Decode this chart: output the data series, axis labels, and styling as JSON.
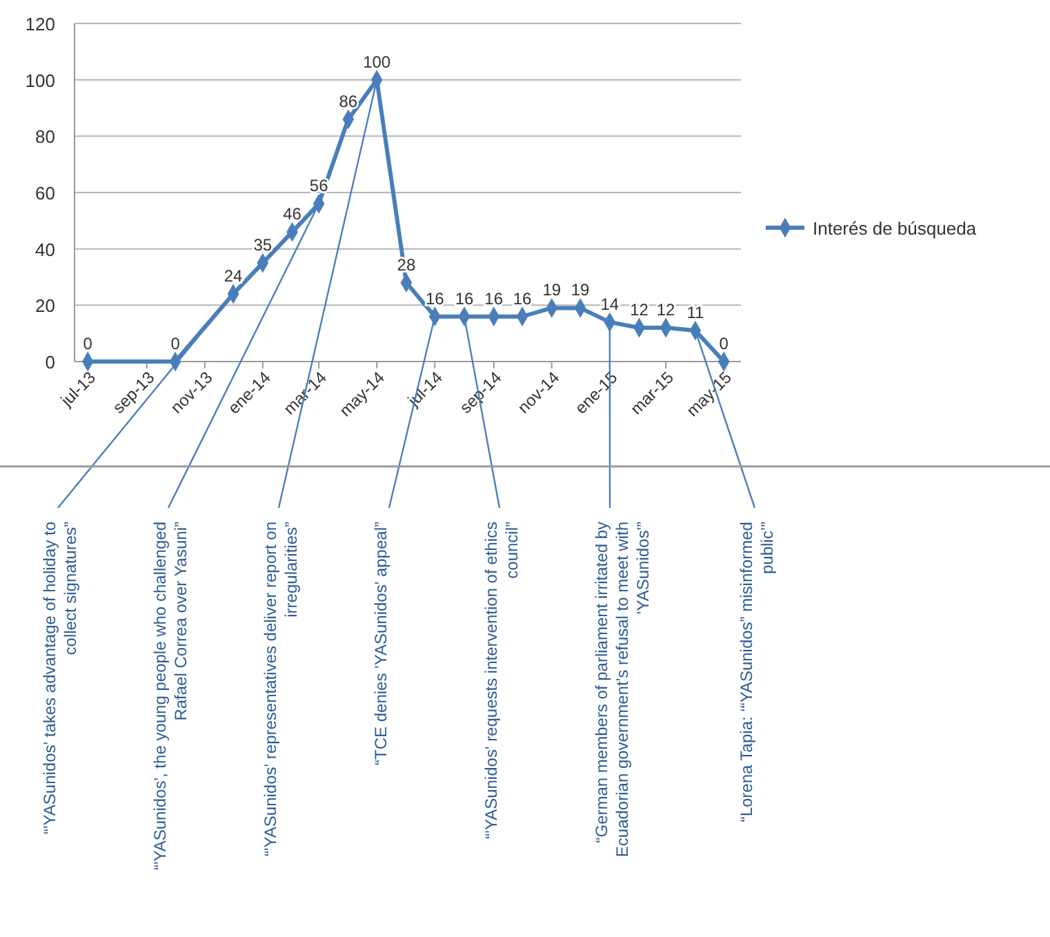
{
  "chart_data": {
    "type": "line",
    "x": [
      "2013-07",
      "2013-10",
      "2013-12",
      "2014-01",
      "2014-02",
      "2014-03",
      "2014-04",
      "2014-05",
      "2014-06",
      "2014-07",
      "2014-08",
      "2014-09",
      "2014-10",
      "2014-11",
      "2014-12",
      "2015-01",
      "2015-02",
      "2015-03",
      "2015-04",
      "2015-05"
    ],
    "series": [
      {
        "name": "Interés de búsqueda",
        "color": "#4a7ebb",
        "values": [
          0,
          0,
          24,
          35,
          46,
          56,
          86,
          100,
          28,
          16,
          16,
          16,
          16,
          19,
          19,
          14,
          12,
          12,
          11,
          0
        ]
      }
    ],
    "xlim": [
      "2013-06-17",
      "2015-05-19"
    ],
    "xticks": [
      {
        "value": "2013-07",
        "label": "jul-13"
      },
      {
        "value": "2013-09",
        "label": "sep-13"
      },
      {
        "value": "2013-11",
        "label": "nov-13"
      },
      {
        "value": "2014-01",
        "label": "ene-14"
      },
      {
        "value": "2014-03",
        "label": "mar-14"
      },
      {
        "value": "2014-05",
        "label": "may-14"
      },
      {
        "value": "2014-07",
        "label": "jul-14"
      },
      {
        "value": "2014-09",
        "label": "sep-14"
      },
      {
        "value": "2014-11",
        "label": "nov-14"
      },
      {
        "value": "2015-01",
        "label": "ene-15"
      },
      {
        "value": "2015-03",
        "label": "mar-15"
      },
      {
        "value": "2015-05",
        "label": "may-15"
      }
    ],
    "ylim": [
      0,
      120
    ],
    "yticks": [
      0,
      20,
      40,
      60,
      80,
      100,
      120
    ],
    "grid": "y",
    "legend": "right",
    "marker": "diamond",
    "line_style": "solid",
    "data_labels": true,
    "annotations": [
      {
        "text": "“'YASunidos' takes advantage of holiday to collect signatures”",
        "x": "2013-12",
        "y": 24
      },
      {
        "text": "“'YASunidos', the young people who challenged Rafael Correa over Yasuni”",
        "x": "2014-03",
        "y": 56
      },
      {
        "text": "“'YASunidos' representatives deliver report on irregularities”",
        "x": "2014-05",
        "y": 100
      },
      {
        "text": "“TCE denies 'YASunidos' appeal”",
        "x": "2014-07",
        "y": 16
      },
      {
        "text": "“'YASunidos' requests intervention of ethics council”",
        "x": "2014-08",
        "y": 16
      },
      {
        "text": "“German members of parliament irritated by Ecuadorian government's refusal to meet with 'YASunidos'”",
        "x": "2015-01",
        "y": 14
      },
      {
        "text": "“Lorena Tapia: ‘“YASunidos” misinformed public’”",
        "x": "2015-04",
        "y": 11
      }
    ]
  }
}
